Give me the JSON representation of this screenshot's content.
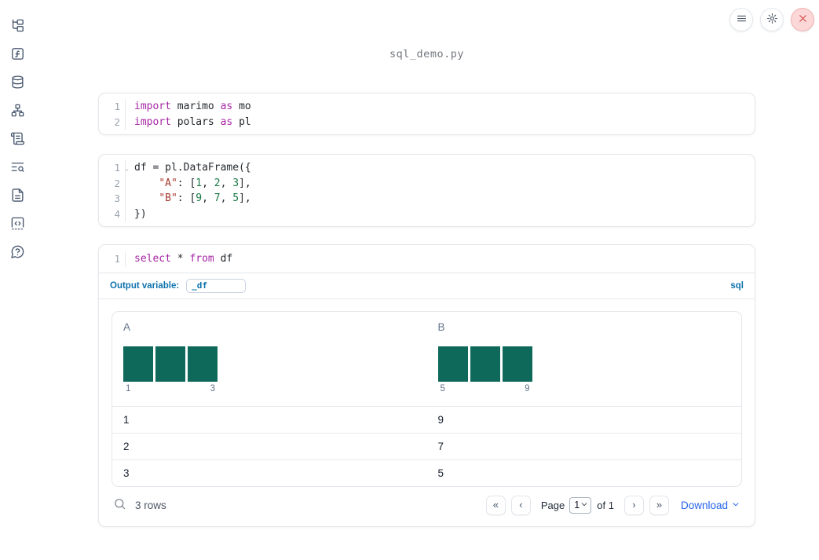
{
  "app": {
    "filename": "sql_demo.py"
  },
  "topbar": {
    "menu_button": {
      "icon": "hamburger-icon"
    },
    "settings_button": {
      "icon": "gear-icon"
    },
    "shutdown_button": {
      "icon": "close-icon",
      "accent": "#d64a4a",
      "background": "#fbd7d7"
    }
  },
  "sidebar": {
    "items": [
      {
        "name": "file-explorer",
        "icon": "file-tree-icon"
      },
      {
        "name": "variables",
        "icon": "function-square-icon"
      },
      {
        "name": "data-sources",
        "icon": "database-icon"
      },
      {
        "name": "dependency-graph",
        "icon": "dependency-graph-icon"
      },
      {
        "name": "logs",
        "icon": "scroll-icon"
      },
      {
        "name": "outline",
        "icon": "list-search-icon"
      },
      {
        "name": "documentation",
        "icon": "document-icon"
      },
      {
        "name": "snippets",
        "icon": "code-snippet-icon"
      },
      {
        "name": "help",
        "icon": "help-bubble-icon"
      }
    ]
  },
  "code_cells": {
    "cell1": {
      "lines": [
        {
          "n": "1",
          "tokens": [
            {
              "t": "kw",
              "v": "import"
            },
            {
              "t": "txt",
              "v": " marimo "
            },
            {
              "t": "kw",
              "v": "as"
            },
            {
              "t": "txt",
              "v": " mo"
            }
          ]
        },
        {
          "n": "2",
          "tokens": [
            {
              "t": "kw",
              "v": "import"
            },
            {
              "t": "txt",
              "v": " polars "
            },
            {
              "t": "kw",
              "v": "as"
            },
            {
              "t": "txt",
              "v": " pl"
            }
          ]
        }
      ]
    },
    "cell2": {
      "lines": [
        {
          "n": "1",
          "fold": true,
          "tokens": [
            {
              "t": "txt",
              "v": "df = pl.DataFrame({"
            }
          ]
        },
        {
          "n": "2",
          "tokens": [
            {
              "t": "txt",
              "v": "    "
            },
            {
              "t": "str",
              "v": "\"A\""
            },
            {
              "t": "txt",
              "v": ": ["
            },
            {
              "t": "num",
              "v": "1"
            },
            {
              "t": "txt",
              "v": ", "
            },
            {
              "t": "num",
              "v": "2"
            },
            {
              "t": "txt",
              "v": ", "
            },
            {
              "t": "num",
              "v": "3"
            },
            {
              "t": "txt",
              "v": "],"
            }
          ]
        },
        {
          "n": "3",
          "tokens": [
            {
              "t": "txt",
              "v": "    "
            },
            {
              "t": "str",
              "v": "\"B\""
            },
            {
              "t": "txt",
              "v": ": ["
            },
            {
              "t": "num",
              "v": "9"
            },
            {
              "t": "txt",
              "v": ", "
            },
            {
              "t": "num",
              "v": "7"
            },
            {
              "t": "txt",
              "v": ", "
            },
            {
              "t": "num",
              "v": "5"
            },
            {
              "t": "txt",
              "v": "],"
            }
          ]
        },
        {
          "n": "4",
          "tokens": [
            {
              "t": "txt",
              "v": "})"
            }
          ]
        }
      ]
    },
    "sql": {
      "lines": [
        {
          "n": "1",
          "tokens": [
            {
              "t": "kw",
              "v": "select"
            },
            {
              "t": "txt",
              "v": " * "
            },
            {
              "t": "kw",
              "v": "from"
            },
            {
              "t": "txt",
              "v": " df"
            }
          ]
        }
      ]
    }
  },
  "sql_cell": {
    "output_variable_label": "Output variable:",
    "output_variable_value": "_df",
    "language_badge": "sql"
  },
  "table": {
    "bar_color": "#0e695b",
    "columns": [
      {
        "header": "A",
        "hist_labels": [
          "1",
          "3"
        ],
        "bars": [
          1,
          1,
          1
        ]
      },
      {
        "header": "B",
        "hist_labels": [
          "5",
          "9"
        ],
        "bars": [
          1,
          1,
          1
        ]
      }
    ],
    "rows": [
      [
        "1",
        "9"
      ],
      [
        "2",
        "7"
      ],
      [
        "3",
        "5"
      ]
    ],
    "footer": {
      "row_count": "3 rows",
      "page_label": "Page",
      "page_value": "1",
      "of_label": "of 1",
      "first_page_icon": "«",
      "prev_page_icon": "‹",
      "next_page_icon": "›",
      "last_page_icon": "»",
      "download_label": "Download"
    }
  }
}
